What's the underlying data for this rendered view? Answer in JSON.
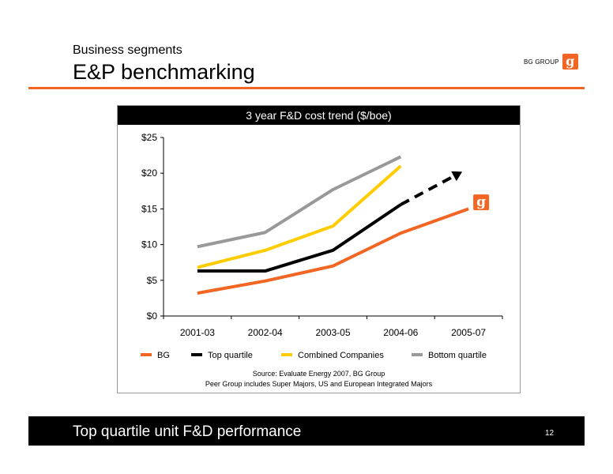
{
  "header": {
    "subtitle": "Business segments",
    "title": "E&P benchmarking",
    "logo_text": "BG GROUP",
    "logo_mark": "g"
  },
  "chart_title": "3 year F&D cost trend ($/boe)",
  "source": {
    "line1": "Source: Evaluate Energy 2007, BG Group",
    "line2": "Peer Group includes Super Majors, US and European Integrated Majors"
  },
  "footer": {
    "text": "Top quartile unit F&D performance",
    "page": "12"
  },
  "colors": {
    "brand_orange": "#f26522",
    "top_quartile": "#000000",
    "combined": "#ffcc00",
    "bottom_quartile": "#999999"
  },
  "chart_data": {
    "type": "line",
    "title": "3 year F&D cost trend ($/boe)",
    "xlabel": "",
    "ylabel": "",
    "categories": [
      "2001-03",
      "2002-04",
      "2003-05",
      "2004-06",
      "2005-07"
    ],
    "ylim": [
      0,
      25
    ],
    "yticks": [
      0,
      5,
      10,
      15,
      20,
      25
    ],
    "ytick_labels": [
      "$0",
      "$5",
      "$10",
      "$15",
      "$20",
      "$25"
    ],
    "grid": false,
    "legend_position": "bottom",
    "series": [
      {
        "name": "BG",
        "color": "#f26522",
        "values": [
          3.2,
          4.9,
          7.0,
          11.6,
          15.0
        ]
      },
      {
        "name": "Top quartile",
        "color": "#000000",
        "values": [
          6.3,
          6.3,
          9.2,
          15.6,
          null
        ],
        "projection": {
          "from_x": 3,
          "from_y": 15.6,
          "to_x": 4,
          "to_y": 20.2
        }
      },
      {
        "name": "Combined Companies",
        "color": "#ffcc00",
        "values": [
          6.8,
          9.2,
          12.6,
          21.0,
          null
        ]
      },
      {
        "name": "Bottom quartile",
        "color": "#999999",
        "values": [
          9.7,
          11.7,
          17.7,
          22.3,
          null
        ]
      }
    ],
    "annotations": [
      {
        "type": "logo",
        "text": "g",
        "x": 4,
        "y": 15.8
      }
    ]
  }
}
